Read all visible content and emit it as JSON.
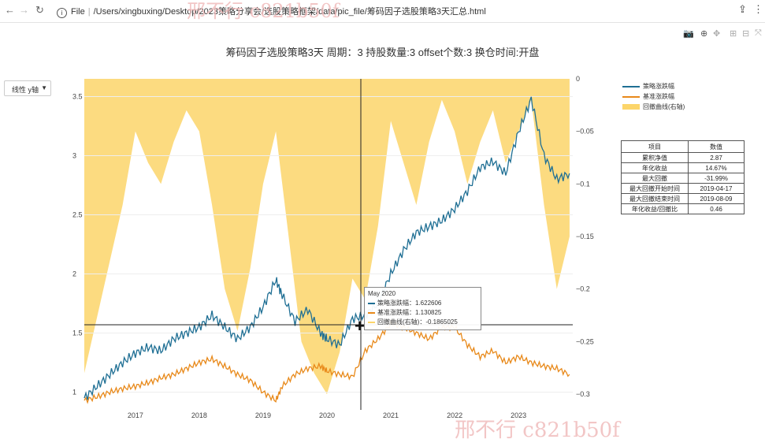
{
  "browser": {
    "address_label": "File",
    "url": "/Users/xingbuxing/Desktop/2023策略分享会/选股策略框架/data/pic_file/筹码因子选股策略3天汇总.html",
    "watermark_top": "邢不行 c821b50f",
    "watermark_bottom": "邢不行 c821b50f"
  },
  "page": {
    "title": "筹码因子选股策略3天 周期：3 持股数量:3 offset个数:3 换仓时间:开盘",
    "yaxis_select": "线性 y轴"
  },
  "icons": [
    "camera-icon",
    "zoom-icon",
    "pan-icon",
    "zoom-in-icon",
    "zoom-out-icon",
    "autoscale-icon"
  ],
  "legend": [
    {
      "name": "策略涨跌幅",
      "color": "#1f6f94"
    },
    {
      "name": "基准涨跌幅",
      "color": "#e8891a"
    },
    {
      "name": "回撤曲线(右轴)",
      "color": "#fcd56a"
    }
  ],
  "stats": {
    "header": [
      "项目",
      "数值"
    ],
    "rows": [
      [
        "累积净值",
        "2.87"
      ],
      [
        "年化收益",
        "14.67%"
      ],
      [
        "最大回撤",
        "-31.99%"
      ],
      [
        "最大回撤开始时间",
        "2019-04-17"
      ],
      [
        "最大回撤结束时间",
        "2019-08-09"
      ],
      [
        "年化收益/回撤比",
        "0.46"
      ]
    ]
  },
  "tooltip": {
    "date": "May 2020",
    "rows": [
      {
        "label": "策略涨跌幅：1.622606",
        "color": "#1f6f94"
      },
      {
        "label": "基准涨跌幅：1.130825",
        "color": "#e8891a"
      },
      {
        "label": "回撤曲线(右轴)：-0.1865025",
        "color": "#fcd56a"
      }
    ]
  },
  "colors": {
    "strategy": "#1f6f94",
    "benchmark": "#e8891a",
    "drawdown": "#fcd56a"
  },
  "chart_data": {
    "type": "line",
    "x_ticks": [
      "2017",
      "2018",
      "2019",
      "2020",
      "2021",
      "2022",
      "2023"
    ],
    "y_left_ticks": [
      "1",
      "1.5",
      "2",
      "2.5",
      "3",
      "3.5"
    ],
    "y_right_ticks": [
      "0",
      "−0.05",
      "−0.1",
      "−0.15",
      "−0.2",
      "−0.25",
      "−0.3"
    ],
    "ylim_left": [
      0.85,
      3.65
    ],
    "ylim_right": [
      -0.3,
      0
    ],
    "xlim": [
      2016.2,
      2023.85
    ],
    "series": [
      {
        "name": "策略涨跌幅",
        "x": [
          2016.2,
          2016.4,
          2016.6,
          2016.8,
          2017.0,
          2017.2,
          2017.4,
          2017.6,
          2017.8,
          2018.0,
          2018.2,
          2018.4,
          2018.6,
          2018.8,
          2019.0,
          2019.2,
          2019.3,
          2019.5,
          2019.7,
          2019.9,
          2020.0,
          2020.2,
          2020.4,
          2020.6,
          2020.8,
          2021.0,
          2021.2,
          2021.4,
          2021.6,
          2021.8,
          2022.0,
          2022.2,
          2022.4,
          2022.6,
          2022.8,
          2023.0,
          2023.2,
          2023.4,
          2023.6,
          2023.8
        ],
        "values": [
          0.95,
          1.05,
          1.15,
          1.25,
          1.33,
          1.38,
          1.35,
          1.45,
          1.5,
          1.55,
          1.65,
          1.55,
          1.45,
          1.55,
          1.72,
          1.95,
          1.82,
          1.6,
          1.7,
          1.5,
          1.45,
          1.4,
          1.62,
          1.65,
          1.75,
          2.0,
          2.2,
          2.35,
          2.4,
          2.45,
          2.55,
          2.7,
          2.9,
          2.95,
          2.85,
          3.2,
          3.48,
          3.0,
          2.8,
          2.85
        ]
      },
      {
        "name": "基准涨跌幅",
        "x": [
          2016.2,
          2016.4,
          2016.6,
          2016.8,
          2017.0,
          2017.2,
          2017.4,
          2017.6,
          2017.8,
          2018.0,
          2018.2,
          2018.4,
          2018.6,
          2018.8,
          2019.0,
          2019.2,
          2019.3,
          2019.5,
          2019.7,
          2019.9,
          2020.0,
          2020.2,
          2020.4,
          2020.6,
          2020.8,
          2021.0,
          2021.2,
          2021.4,
          2021.6,
          2021.8,
          2022.0,
          2022.2,
          2022.4,
          2022.6,
          2022.8,
          2023.0,
          2023.2,
          2023.4,
          2023.6,
          2023.8
        ],
        "values": [
          0.93,
          0.96,
          1.0,
          1.03,
          1.05,
          1.08,
          1.12,
          1.15,
          1.2,
          1.25,
          1.28,
          1.22,
          1.15,
          1.1,
          1.0,
          0.93,
          1.05,
          1.15,
          1.2,
          1.22,
          1.18,
          1.15,
          1.13,
          1.35,
          1.45,
          1.58,
          1.55,
          1.5,
          1.45,
          1.55,
          1.55,
          1.4,
          1.3,
          1.35,
          1.25,
          1.3,
          1.25,
          1.22,
          1.2,
          1.15
        ]
      },
      {
        "name": "回撤曲线(右轴)",
        "x": [
          2016.2,
          2016.5,
          2016.8,
          2017.0,
          2017.2,
          2017.4,
          2017.6,
          2017.8,
          2018.0,
          2018.2,
          2018.4,
          2018.6,
          2018.8,
          2019.0,
          2019.2,
          2019.4,
          2019.6,
          2019.8,
          2020.0,
          2020.2,
          2020.4,
          2020.6,
          2020.8,
          2021.0,
          2021.2,
          2021.4,
          2021.6,
          2021.8,
          2022.0,
          2022.2,
          2022.4,
          2022.6,
          2022.8,
          2023.0,
          2023.2,
          2023.4,
          2023.6,
          2023.8
        ],
        "values": [
          -0.28,
          -0.2,
          -0.12,
          -0.05,
          -0.08,
          -0.1,
          -0.06,
          -0.03,
          -0.05,
          -0.12,
          -0.2,
          -0.24,
          -0.18,
          -0.1,
          -0.05,
          -0.15,
          -0.25,
          -0.28,
          -0.3,
          -0.26,
          -0.19,
          -0.21,
          -0.14,
          -0.04,
          -0.08,
          -0.12,
          -0.06,
          -0.02,
          -0.05,
          -0.1,
          -0.06,
          -0.03,
          -0.08,
          -0.05,
          -0.02,
          -0.12,
          -0.2,
          -0.15
        ]
      }
    ]
  }
}
